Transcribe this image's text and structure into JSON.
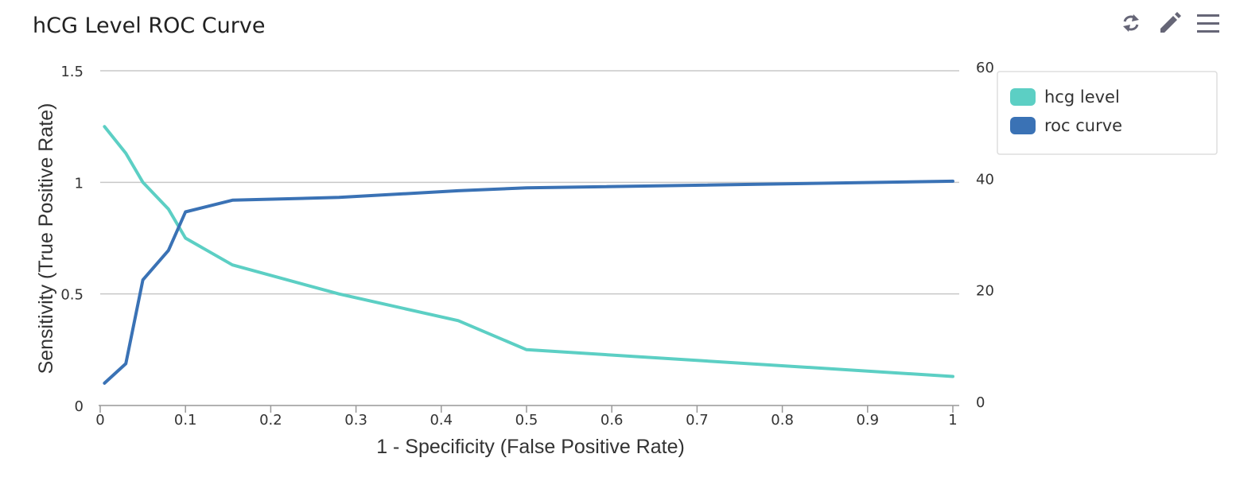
{
  "title": "hCG Level ROC Curve",
  "toolbar": {
    "icons": [
      "refresh-icon",
      "edit-icon",
      "menu-icon"
    ]
  },
  "colors": {
    "hcg": "#5ccfc4",
    "roc": "#3a72b5",
    "grid": "#c8c8c8",
    "axis": "#999999",
    "icon": "#666677"
  },
  "chart_data": {
    "type": "line",
    "xlabel": "1 - Specificity (False Positive Rate)",
    "ylabel_left": "Sensitivity (True Positive Rate)",
    "x_ticks": [
      "0",
      "0.1",
      "0.2",
      "0.3",
      "0.4",
      "0.5",
      "0.6",
      "0.7",
      "0.8",
      "0.9",
      "1"
    ],
    "y_left_ticks": [
      "0",
      "0.5",
      "1",
      "1.5"
    ],
    "y_right_ticks": [
      "0",
      "20",
      "40",
      "60"
    ],
    "xlim": [
      0,
      1
    ],
    "ylim_left": [
      0,
      1.5
    ],
    "ylim_right": [
      0,
      60
    ],
    "grid": true,
    "legend_position": "top-right",
    "series": [
      {
        "name": "hcg level",
        "axis": "left",
        "color_key": "hcg",
        "points": [
          [
            0.005,
            1.25
          ],
          [
            0.03,
            1.13
          ],
          [
            0.05,
            1.0
          ],
          [
            0.08,
            0.88
          ],
          [
            0.1,
            0.75
          ],
          [
            0.155,
            0.63
          ],
          [
            0.28,
            0.5
          ],
          [
            0.42,
            0.38
          ],
          [
            0.5,
            0.25
          ],
          [
            1.0,
            0.13
          ]
        ]
      },
      {
        "name": "roc curve",
        "axis": "right",
        "color_key": "roc",
        "points": [
          [
            0.005,
            4.0
          ],
          [
            0.03,
            7.5
          ],
          [
            0.05,
            22.5
          ],
          [
            0.08,
            27.8
          ],
          [
            0.1,
            34.7
          ],
          [
            0.155,
            36.8
          ],
          [
            0.28,
            37.3
          ],
          [
            0.42,
            38.5
          ],
          [
            0.5,
            39.0
          ],
          [
            1.0,
            40.2
          ]
        ]
      }
    ]
  }
}
